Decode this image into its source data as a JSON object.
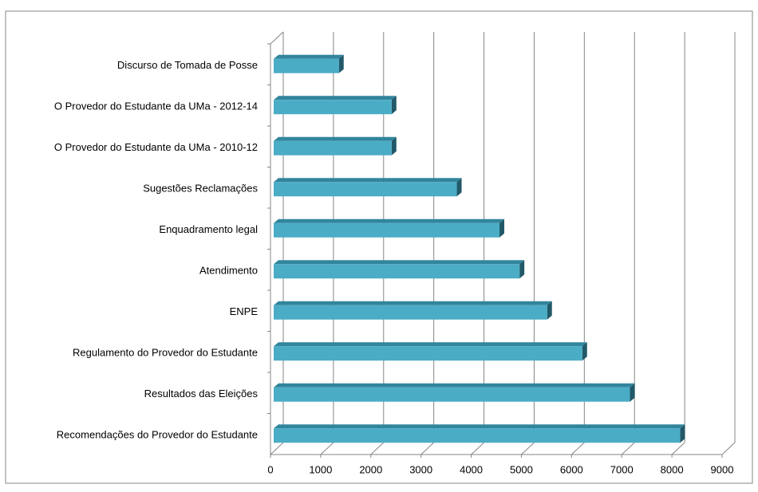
{
  "chart_data": {
    "type": "bar",
    "orientation": "horizontal",
    "three_d": true,
    "categories": [
      "Discurso de Tomada de Posse",
      "O Provedor do Estudante da UMa - 2012-14",
      "O Provedor do Estudante da UMa - 2010-12",
      "Sugestões  Reclamações",
      "Enquadramento legal",
      "Atendimento",
      "ENPE",
      "Regulamento do Provedor do Estudante",
      "Resultados das Eleições",
      "Recomendações do Provedor do Estudante"
    ],
    "values": [
      1300,
      2350,
      2350,
      3650,
      4500,
      4900,
      5450,
      6150,
      7100,
      8100
    ],
    "color": "#4bacc6",
    "xlim": [
      0,
      9000
    ],
    "xticks": [
      0,
      1000,
      2000,
      3000,
      4000,
      5000,
      6000,
      7000,
      8000,
      9000
    ],
    "grid": true
  }
}
